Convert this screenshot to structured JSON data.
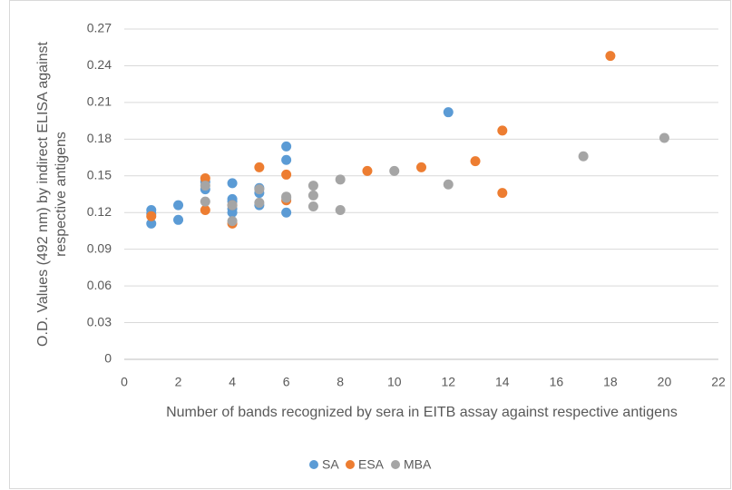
{
  "chart_data": {
    "type": "scatter",
    "x_label": "Number of bands recognized by sera in EITB assay against respective antigens",
    "y_label": [
      "O.D. Values (492 nm) by indirect ELISA against",
      "respective antigens"
    ],
    "xlim": [
      0,
      22
    ],
    "xticks": [
      0,
      2,
      4,
      6,
      8,
      10,
      12,
      14,
      16,
      18,
      20,
      22
    ],
    "ylim": [
      0,
      0.27
    ],
    "yticks": [
      0,
      0.03,
      0.06,
      0.09,
      0.12,
      0.15,
      0.18,
      0.21,
      0.24,
      0.27
    ],
    "grid": true,
    "legend": "bottom",
    "series": [
      {
        "name": "SA",
        "color": "#5b9bd5",
        "x": [
          1,
          1,
          1,
          2,
          2,
          3,
          3,
          4,
          4,
          4,
          4,
          4,
          5,
          5,
          5,
          6,
          6,
          6,
          12
        ],
        "values": [
          0.111,
          0.122,
          0.119,
          0.126,
          0.114,
          0.139,
          0.145,
          0.144,
          0.131,
          0.129,
          0.123,
          0.12,
          0.14,
          0.136,
          0.126,
          0.174,
          0.163,
          0.12,
          0.202
        ]
      },
      {
        "name": "ESA",
        "color": "#ed7d31",
        "x": [
          1,
          3,
          3,
          4,
          4,
          5,
          6,
          6,
          9,
          11,
          13,
          14,
          14,
          18
        ],
        "values": [
          0.117,
          0.148,
          0.122,
          0.111,
          0.126,
          0.157,
          0.151,
          0.13,
          0.154,
          0.157,
          0.162,
          0.187,
          0.136,
          0.248
        ]
      },
      {
        "name": "MBA",
        "color": "#a5a5a5",
        "x": [
          3,
          3,
          4,
          4,
          5,
          5,
          6,
          6,
          7,
          7,
          7,
          8,
          8,
          10,
          12,
          17,
          20
        ],
        "values": [
          0.129,
          0.142,
          0.113,
          0.126,
          0.139,
          0.128,
          0.133,
          0.132,
          0.142,
          0.134,
          0.125,
          0.147,
          0.122,
          0.154,
          0.143,
          0.166,
          0.181
        ]
      }
    ]
  }
}
